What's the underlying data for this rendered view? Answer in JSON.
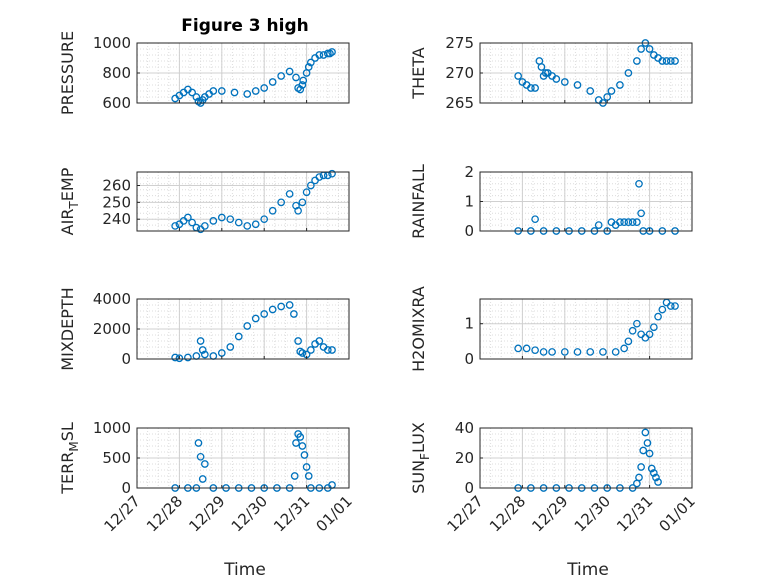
{
  "figure_title": "Figure 3 high",
  "x_axis_label": "Time",
  "x_tick_labels": [
    "12/27",
    "12/28",
    "12/29",
    "12/30",
    "12/31",
    "01/01"
  ],
  "marker_color": "#0072BD",
  "grid_color": "#dcdcdc",
  "chart_data": [
    {
      "type": "scatter",
      "ylabel": "PRESSURE",
      "title": "Figure 3 high",
      "xlabel": "",
      "xlim": [
        "12/27",
        "01/01"
      ],
      "ylim": [
        600,
        1000
      ],
      "yticks": [
        600,
        800,
        1000
      ],
      "grid": true,
      "x": [
        0.9,
        1.0,
        1.1,
        1.2,
        1.3,
        1.4,
        1.45,
        1.5,
        1.55,
        1.6,
        1.7,
        1.8,
        2.0,
        2.3,
        2.6,
        2.8,
        3.0,
        3.2,
        3.4,
        3.6,
        3.75,
        3.8,
        3.85,
        3.9,
        3.92,
        4.0,
        4.05,
        4.1,
        4.2,
        4.3,
        4.4,
        4.5,
        4.55,
        4.6
      ],
      "values": [
        630,
        650,
        670,
        690,
        670,
        640,
        610,
        600,
        620,
        640,
        660,
        680,
        680,
        670,
        660,
        680,
        700,
        740,
        780,
        810,
        770,
        700,
        690,
        720,
        750,
        800,
        840,
        870,
        900,
        920,
        920,
        930,
        930,
        940
      ]
    },
    {
      "type": "scatter",
      "ylabel": "THETA",
      "ylim": [
        265,
        275
      ],
      "yticks": [
        265,
        270,
        275
      ],
      "grid": true,
      "x": [
        0.9,
        1.0,
        1.1,
        1.2,
        1.3,
        1.4,
        1.45,
        1.5,
        1.55,
        1.6,
        1.7,
        1.8,
        2.0,
        2.3,
        2.6,
        2.8,
        2.9,
        3.0,
        3.1,
        3.3,
        3.5,
        3.7,
        3.8,
        3.9,
        4.0,
        4.1,
        4.2,
        4.3,
        4.4,
        4.5,
        4.6
      ],
      "values": [
        269.5,
        268.5,
        268,
        267.5,
        267.5,
        272,
        271,
        269.5,
        270,
        270,
        269.5,
        269,
        268.5,
        268,
        267,
        265.5,
        265,
        266,
        267,
        268,
        270,
        272,
        274,
        275,
        274,
        273,
        272.5,
        272,
        272,
        272,
        272
      ]
    },
    {
      "type": "scatter",
      "ylabel": "AIR_TEMP",
      "ylim": [
        233,
        268
      ],
      "yticks": [
        240,
        250,
        260
      ],
      "grid": true,
      "x": [
        0.9,
        1.0,
        1.1,
        1.2,
        1.3,
        1.4,
        1.5,
        1.6,
        1.8,
        2.0,
        2.2,
        2.4,
        2.6,
        2.8,
        3.0,
        3.2,
        3.4,
        3.6,
        3.75,
        3.8,
        3.9,
        4.0,
        4.1,
        4.2,
        4.3,
        4.4,
        4.5,
        4.6
      ],
      "values": [
        236,
        237,
        239,
        241,
        238,
        235,
        234,
        236,
        239,
        241,
        240,
        238,
        236,
        237,
        240,
        245,
        250,
        255,
        248,
        245,
        250,
        256,
        260,
        263,
        265,
        266,
        266,
        267
      ]
    },
    {
      "type": "scatter",
      "ylabel": "RAINFALL",
      "ylim": [
        0,
        2
      ],
      "yticks": [
        0,
        1,
        2
      ],
      "grid": true,
      "x": [
        0.9,
        1.2,
        1.5,
        1.8,
        2.1,
        2.4,
        2.7,
        3.0,
        3.2,
        3.4,
        3.6,
        3.7,
        3.75,
        3.8,
        3.85,
        4.0,
        4.3,
        4.6,
        1.3,
        2.8,
        3.1,
        3.3,
        3.5
      ],
      "values": [
        0,
        0,
        0,
        0,
        0,
        0,
        0,
        0,
        0.2,
        0.3,
        0.3,
        0.3,
        1.6,
        0.6,
        0,
        0,
        0,
        0,
        0.4,
        0.2,
        0.3,
        0.3,
        0.3
      ]
    },
    {
      "type": "scatter",
      "ylabel": "MIXDEPTH",
      "ylim": [
        0,
        4000
      ],
      "yticks": [
        0,
        2000,
        4000
      ],
      "grid": true,
      "x": [
        0.9,
        1.0,
        1.2,
        1.4,
        1.5,
        1.55,
        1.6,
        1.8,
        2.0,
        2.2,
        2.4,
        2.6,
        2.8,
        3.0,
        3.2,
        3.4,
        3.6,
        3.7,
        3.8,
        3.85,
        3.9,
        4.0,
        4.1,
        4.2,
        4.3,
        4.4,
        4.5,
        4.6
      ],
      "values": [
        100,
        50,
        100,
        200,
        1200,
        600,
        300,
        200,
        400,
        800,
        1500,
        2200,
        2700,
        3000,
        3300,
        3500,
        3600,
        3000,
        1200,
        500,
        400,
        300,
        600,
        1000,
        1200,
        800,
        600,
        600
      ]
    },
    {
      "type": "scatter",
      "ylabel": "H2OMIXRA",
      "ylim": [
        0,
        1.7
      ],
      "yticks": [
        0,
        1
      ],
      "grid": true,
      "x": [
        0.9,
        1.1,
        1.3,
        1.5,
        1.7,
        2.0,
        2.3,
        2.6,
        2.9,
        3.2,
        3.4,
        3.5,
        3.6,
        3.7,
        3.8,
        3.9,
        4.0,
        4.1,
        4.2,
        4.3,
        4.4,
        4.5,
        4.6
      ],
      "values": [
        0.3,
        0.3,
        0.25,
        0.2,
        0.2,
        0.2,
        0.2,
        0.2,
        0.2,
        0.2,
        0.3,
        0.5,
        0.8,
        1.0,
        0.7,
        0.6,
        0.7,
        0.9,
        1.2,
        1.4,
        1.6,
        1.5,
        1.5
      ]
    },
    {
      "type": "scatter",
      "ylabel": "TERR_MSL",
      "ylim": [
        0,
        1000
      ],
      "yticks": [
        0,
        500,
        1000
      ],
      "grid": true,
      "x": [
        0.9,
        1.2,
        1.4,
        1.45,
        1.5,
        1.55,
        1.6,
        1.8,
        2.1,
        2.4,
        2.7,
        3.0,
        3.3,
        3.6,
        3.72,
        3.75,
        3.8,
        3.85,
        3.9,
        3.95,
        4.0,
        4.05,
        4.1,
        4.3,
        4.5,
        4.6
      ],
      "values": [
        0,
        0,
        0,
        750,
        520,
        150,
        400,
        0,
        0,
        0,
        0,
        0,
        0,
        0,
        200,
        750,
        900,
        850,
        700,
        550,
        350,
        200,
        0,
        0,
        0,
        50
      ]
    },
    {
      "type": "scatter",
      "ylabel": "SUN_FLUX",
      "ylim": [
        0,
        40
      ],
      "yticks": [
        0,
        20,
        40
      ],
      "grid": true,
      "x": [
        0.9,
        1.2,
        1.5,
        1.8,
        2.1,
        2.4,
        2.7,
        3.0,
        3.3,
        3.6,
        3.7,
        3.75,
        3.8,
        3.85,
        3.9,
        3.95,
        4.0,
        4.05,
        4.1,
        4.15,
        4.2
      ],
      "values": [
        0,
        0,
        0,
        0,
        0,
        0,
        0,
        0,
        0,
        0,
        3,
        7,
        14,
        25,
        37,
        30,
        23,
        13,
        10,
        7,
        4
      ]
    }
  ]
}
